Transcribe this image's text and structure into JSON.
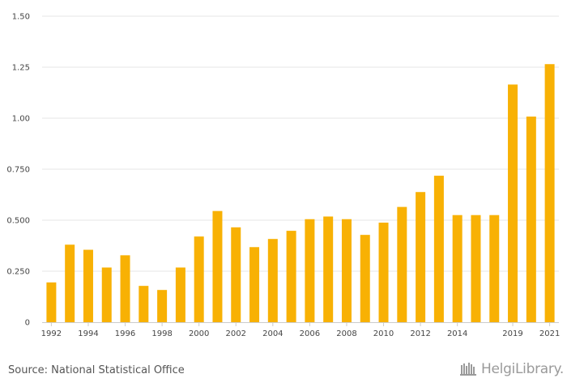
{
  "chart_data": {
    "type": "bar",
    "categories": [
      "1992",
      "1993",
      "1994",
      "1995",
      "1996",
      "1997",
      "1998",
      "1999",
      "2000",
      "2001",
      "2002",
      "2003",
      "2004",
      "2005",
      "2006",
      "2007",
      "2008",
      "2009",
      "2010",
      "2011",
      "2012",
      "2013",
      "2014",
      "2015",
      "2016",
      "2019",
      "2020",
      "2021"
    ],
    "values": [
      0.195,
      0.38,
      0.355,
      0.268,
      0.328,
      0.178,
      0.158,
      0.268,
      0.42,
      0.545,
      0.465,
      0.368,
      0.408,
      0.448,
      0.505,
      0.518,
      0.505,
      0.428,
      0.488,
      0.565,
      0.638,
      0.718,
      0.525,
      0.525,
      0.525,
      1.165,
      1.008,
      1.265
    ],
    "x_tick_labels": [
      "1992",
      "1994",
      "1996",
      "1998",
      "2000",
      "2002",
      "2004",
      "2006",
      "2008",
      "2010",
      "2012",
      "2014",
      "2019",
      "2021"
    ],
    "y_ticks": [
      0,
      0.25,
      0.5,
      0.75,
      1.0,
      1.25,
      1.5
    ],
    "y_tick_labels": [
      "0",
      "0.250",
      "0.500",
      "0.750",
      "1.00",
      "1.25",
      "1.50"
    ],
    "ylim": [
      0,
      1.5
    ],
    "grid": true,
    "bar_color": "#f8b104",
    "title": "",
    "xlabel": "",
    "ylabel": ""
  },
  "footer": {
    "source": "Source: National Statistical Office",
    "logo_text": "HelgiLibrary."
  },
  "colors": {
    "grid": "#e6e6e6",
    "axis": "#cccccc"
  }
}
